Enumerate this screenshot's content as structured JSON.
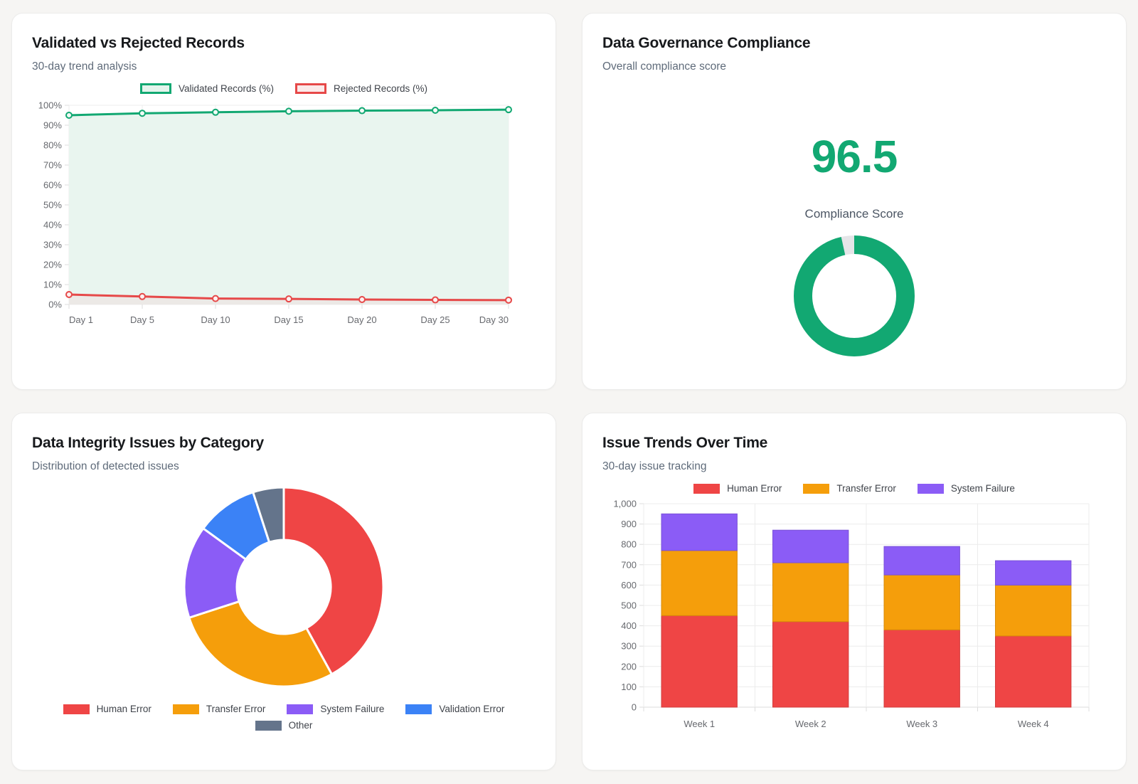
{
  "app": {
    "background_color": "#f6f5f3",
    "card_background": "#ffffff"
  },
  "chart_data": [
    {
      "id": "validated-vs-rejected",
      "type": "line",
      "title": "Validated vs Rejected Records",
      "subtitle": "30-day trend analysis",
      "x_labels": [
        "Day 1",
        "Day 5",
        "Day 10",
        "Day 15",
        "Day 20",
        "Day 25",
        "Day 30"
      ],
      "ylim": [
        0,
        100
      ],
      "ytick_step": 10,
      "ytick_suffix": "%",
      "grid": true,
      "legend_position": "top",
      "series": [
        {
          "name": "Validated Records (%)",
          "values": [
            95,
            96,
            96.5,
            97,
            97.3,
            97.5,
            97.8
          ],
          "color": "#12a872",
          "area_fill": "#e9f5ef",
          "legend_fill": "#e4f4ec",
          "marker_fill": "#f2faf6"
        },
        {
          "name": "Rejected Records (%)",
          "values": [
            5,
            4,
            3,
            2.8,
            2.5,
            2.3,
            2.2
          ],
          "color": "#e64949",
          "area_fill": "#ece9e6",
          "legend_fill": "#fbeaea",
          "marker_fill": "#fdf0f0"
        }
      ]
    },
    {
      "id": "compliance-gauge",
      "type": "donut",
      "title": "Data Governance Compliance",
      "subtitle": "Overall compliance score",
      "display_value": "96.5",
      "value": 96.5,
      "max": 100,
      "value_label": "Compliance Score",
      "color": "#12a872",
      "track_color": "#e5e5e8"
    },
    {
      "id": "issues-by-category",
      "type": "pie",
      "title": "Data Integrity Issues by Category",
      "subtitle": "Distribution of detected issues",
      "labels": [
        "Human Error",
        "Transfer Error",
        "System Failure",
        "Validation Error",
        "Other"
      ],
      "values": [
        42,
        28,
        15,
        10,
        5
      ],
      "colors": [
        "#ef4545",
        "#f59e0b",
        "#8b5cf6",
        "#3b82f6",
        "#64748b"
      ],
      "legend_position": "bottom"
    },
    {
      "id": "issue-trends",
      "type": "bar",
      "stacked": true,
      "title": "Issue Trends Over Time",
      "subtitle": "30-day issue tracking",
      "categories": [
        "Week 1",
        "Week 2",
        "Week 3",
        "Week 4"
      ],
      "ylim": [
        0,
        1000
      ],
      "ytick_step": 100,
      "grid": true,
      "legend_position": "top",
      "series": [
        {
          "name": "Human Error",
          "values": [
            450,
            420,
            380,
            350
          ],
          "color": "#ef4545"
        },
        {
          "name": "Transfer Error",
          "values": [
            320,
            290,
            270,
            250
          ],
          "color": "#f59e0b"
        },
        {
          "name": "System Failure",
          "values": [
            180,
            160,
            140,
            120
          ],
          "color": "#8b5cf6"
        }
      ]
    }
  ]
}
